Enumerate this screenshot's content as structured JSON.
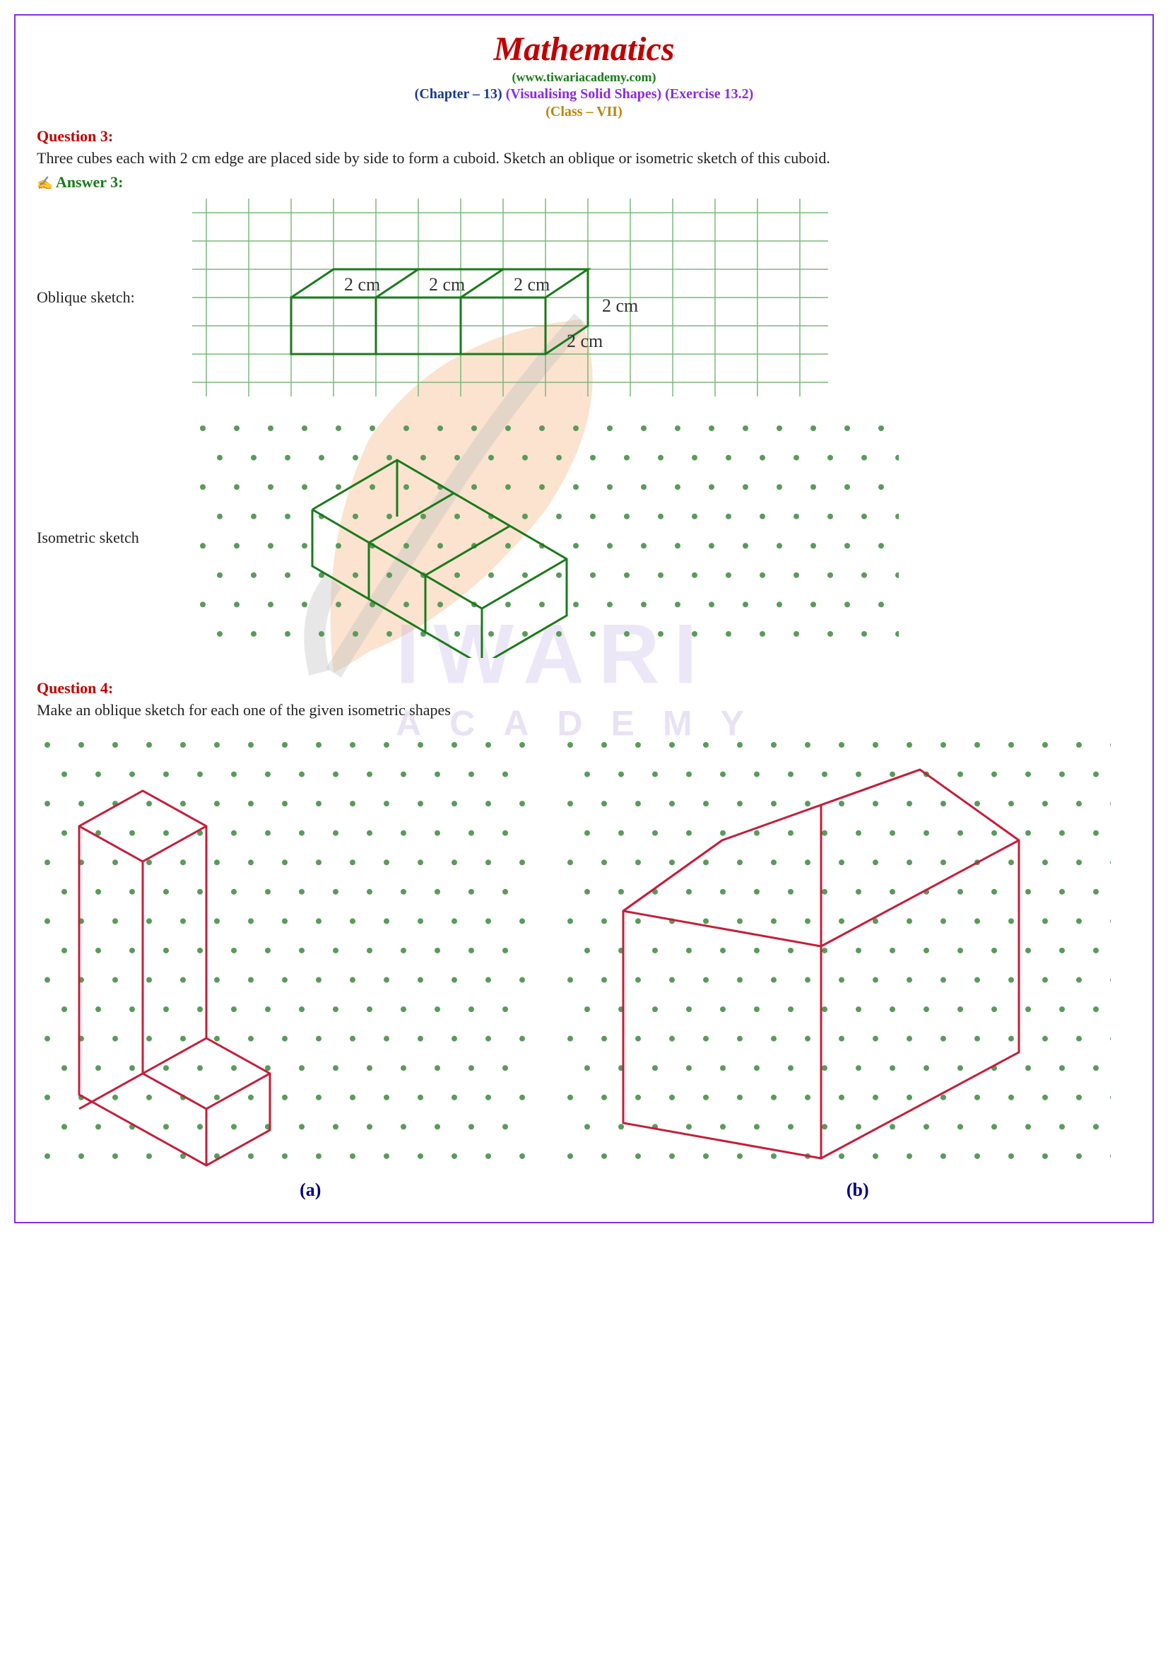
{
  "header": {
    "title": "Mathematics",
    "website": "(www.tiwariacademy.com)",
    "chapter_prefix": "(Chapter – 13) ",
    "chapter_rest": "(Visualising Solid Shapes) (Exercise 13.2)",
    "classline": "(Class – VII)"
  },
  "q3": {
    "label": "Question 3:",
    "text": "Three cubes each with 2 cm edge are placed side by side to form a cuboid. Sketch an oblique or isometric sketch of this cuboid.",
    "answer_label": "Answer 3:",
    "oblique_label": "Oblique sketch:",
    "isometric_label": "Isometric sketch",
    "measurements": [
      "2 cm",
      "2 cm",
      "2 cm",
      "2 cm",
      "2 cm"
    ]
  },
  "q4": {
    "label": "Question 4:",
    "text": "Make an oblique sketch for each one of the given isometric shapes",
    "fig_a": "(a)",
    "fig_b": "(b)"
  },
  "colors": {
    "border": "#8a2be2",
    "title": "#c00000",
    "website": "#1a7a1a",
    "chapter": "#1a3a8a",
    "class": "#b8860b",
    "question": "#c00000",
    "answer": "#1a7a1a",
    "grid": "#7ab87a",
    "oblique_shape": "#1a7a1a",
    "iso_dot": "#5a9a5a",
    "iso_shape_green": "#1a7a1a",
    "iso_shape_red": "#c41e3a",
    "fig_label": "#000080",
    "measurement_text": "#333333"
  },
  "watermark": {
    "line1": "IWARI",
    "line2": "ACADEMY"
  }
}
